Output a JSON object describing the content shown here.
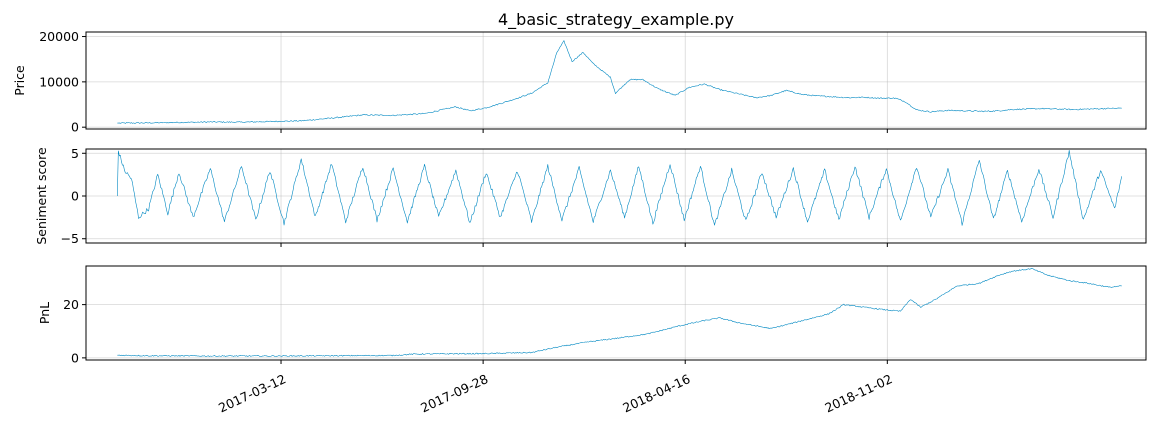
{
  "chart_data": [
    {
      "type": "line",
      "title": "4_basic_strategy_example.py",
      "xlabel": "",
      "ylabel": "Price",
      "xlim": [
        "2016-08-31",
        "2019-07-16"
      ],
      "ylim": [
        -400,
        21000
      ],
      "yticks": [
        0,
        10000,
        20000
      ],
      "ytick_labels": [
        "0",
        "10000",
        "20000"
      ],
      "xticks": [
        "2017-03-12",
        "2017-09-28",
        "2018-04-16",
        "2018-11-02"
      ],
      "xtick_labels": [],
      "grid": true,
      "line_color": "#0088c2",
      "series": [
        {
          "x": [
            "2016-10-01",
            "2016-11-01",
            "2016-12-01",
            "2017-01-01",
            "2017-02-01",
            "2017-03-01",
            "2017-04-01",
            "2017-05-01",
            "2017-06-01",
            "2017-07-01",
            "2017-08-01",
            "2017-09-01",
            "2017-09-15",
            "2017-10-01",
            "2017-10-15",
            "2017-11-01",
            "2017-11-15",
            "2017-12-01",
            "2017-12-10",
            "2017-12-17",
            "2017-12-25",
            "2018-01-05",
            "2018-01-15",
            "2018-02-01",
            "2018-02-06",
            "2018-02-20",
            "2018-03-05",
            "2018-03-20",
            "2018-04-06",
            "2018-04-20",
            "2018-05-05",
            "2018-05-20",
            "2018-06-05",
            "2018-06-25",
            "2018-07-10",
            "2018-07-25",
            "2018-08-10",
            "2018-08-25",
            "2018-09-10",
            "2018-09-25",
            "2018-10-10",
            "2018-10-25",
            "2018-11-10",
            "2018-11-20",
            "2018-12-01",
            "2018-12-15",
            "2019-01-01",
            "2019-01-20",
            "2019-02-05",
            "2019-02-20",
            "2019-03-05",
            "2019-03-20",
            "2019-04-05",
            "2019-04-20",
            "2019-05-05",
            "2019-05-20",
            "2019-06-05",
            "2019-06-22"
          ],
          "values": [
            900,
            950,
            1050,
            1150,
            1100,
            1250,
            1400,
            2000,
            2700,
            2600,
            3000,
            4500,
            3600,
            4300,
            5200,
            6400,
            7500,
            9800,
            16500,
            19000,
            14500,
            16500,
            14000,
            11000,
            7500,
            10500,
            10500,
            8500,
            7000,
            8800,
            9500,
            8300,
            7500,
            6500,
            7000,
            8100,
            7200,
            6900,
            6700,
            6500,
            6600,
            6400,
            6400,
            5600,
            3800,
            3400,
            3700,
            3600,
            3500,
            3600,
            3900,
            4000,
            4100,
            4000,
            3900,
            4000,
            4100,
            4200
          ]
        }
      ]
    },
    {
      "type": "line",
      "title": "",
      "xlabel": "",
      "ylabel": "Seniment score",
      "xlim": [
        "2016-08-31",
        "2019-07-16"
      ],
      "ylim": [
        -5.5,
        5.5
      ],
      "yticks": [
        -5,
        0,
        5
      ],
      "ytick_labels": [
        "−5",
        "0",
        "5"
      ],
      "xticks": [
        "2017-03-12",
        "2017-09-28",
        "2018-04-16",
        "2018-11-02"
      ],
      "xtick_labels": [],
      "grid": true,
      "line_color": "#0088c2",
      "series": [
        {
          "x": [
            "2016-10-01",
            "2016-10-02",
            "2016-10-08",
            "2016-10-15",
            "2016-10-22",
            "2016-11-01",
            "2016-11-10",
            "2016-11-20",
            "2016-12-01",
            "2016-12-15",
            "2017-01-01",
            "2017-01-15",
            "2017-02-01",
            "2017-02-15",
            "2017-03-01",
            "2017-03-15",
            "2017-04-01",
            "2017-04-15",
            "2017-05-01",
            "2017-05-15",
            "2017-06-01",
            "2017-06-15",
            "2017-07-01",
            "2017-07-15",
            "2017-08-01",
            "2017-08-15",
            "2017-09-01",
            "2017-09-15",
            "2017-10-01",
            "2017-10-15",
            "2017-11-01",
            "2017-11-15",
            "2017-12-01",
            "2017-12-15",
            "2018-01-01",
            "2018-01-15",
            "2018-02-01",
            "2018-02-15",
            "2018-03-01",
            "2018-03-15",
            "2018-04-01",
            "2018-04-15",
            "2018-05-01",
            "2018-05-15",
            "2018-06-01",
            "2018-06-15",
            "2018-07-01",
            "2018-07-15",
            "2018-08-01",
            "2018-08-15",
            "2018-09-01",
            "2018-09-15",
            "2018-10-01",
            "2018-10-15",
            "2018-11-01",
            "2018-11-15",
            "2018-12-01",
            "2018-12-15",
            "2019-01-01",
            "2019-01-15",
            "2019-02-01",
            "2019-02-15",
            "2019-03-01",
            "2019-03-15",
            "2019-04-01",
            "2019-04-15",
            "2019-05-01",
            "2019-05-15",
            "2019-06-01",
            "2019-06-15",
            "2019-06-22"
          ],
          "values": [
            0.0,
            5.3,
            3.0,
            2.0,
            -2.5,
            -1.5,
            2.5,
            -2.0,
            2.8,
            -2.5,
            3.2,
            -3.0,
            3.5,
            -2.8,
            3.0,
            -3.2,
            4.3,
            -2.5,
            3.8,
            -3.0,
            3.5,
            -2.8,
            3.2,
            -3.0,
            3.5,
            -2.5,
            3.0,
            -3.2,
            2.8,
            -2.5,
            3.0,
            -3.0,
            3.5,
            -2.8,
            3.2,
            -3.0,
            3.0,
            -2.5,
            3.5,
            -3.2,
            3.8,
            -2.8,
            3.5,
            -3.5,
            3.0,
            -3.0,
            2.8,
            -2.5,
            3.2,
            -3.0,
            3.0,
            -2.8,
            3.5,
            -2.5,
            3.2,
            -3.0,
            3.5,
            -2.5,
            3.0,
            -3.2,
            4.2,
            -2.8,
            3.0,
            -3.0,
            3.2,
            -2.5,
            5.2,
            -2.8,
            3.0,
            -1.5,
            2.3
          ]
        }
      ]
    },
    {
      "type": "line",
      "title": "",
      "xlabel": "",
      "ylabel": "PnL",
      "xlim": [
        "2016-08-31",
        "2019-07-16"
      ],
      "ylim": [
        -0.8,
        34.5
      ],
      "yticks": [
        0,
        20
      ],
      "ytick_labels": [
        "0",
        "20"
      ],
      "xticks": [
        "2017-03-12",
        "2017-09-28",
        "2018-04-16",
        "2018-11-02"
      ],
      "xtick_labels": [
        "2017-03-12",
        "2017-09-28",
        "2018-04-16",
        "2018-11-02"
      ],
      "grid": true,
      "line_color": "#0088c2",
      "series": [
        {
          "x": [
            "2016-10-01",
            "2016-11-01",
            "2017-01-01",
            "2017-03-01",
            "2017-05-01",
            "2017-07-01",
            "2017-07-20",
            "2017-08-15",
            "2017-10-01",
            "2017-11-15",
            "2017-12-10",
            "2018-01-10",
            "2018-02-10",
            "2018-03-10",
            "2018-04-10",
            "2018-05-05",
            "2018-05-20",
            "2018-06-10",
            "2018-07-10",
            "2018-08-10",
            "2018-09-05",
            "2018-09-20",
            "2018-10-10",
            "2018-11-01",
            "2018-11-15",
            "2018-11-25",
            "2018-12-05",
            "2018-12-20",
            "2019-01-10",
            "2019-02-01",
            "2019-02-20",
            "2019-03-05",
            "2019-03-25",
            "2019-04-10",
            "2019-05-01",
            "2019-05-20",
            "2019-06-10",
            "2019-06-22"
          ],
          "values": [
            1.0,
            0.8,
            0.7,
            0.7,
            0.8,
            0.9,
            1.4,
            1.5,
            1.6,
            2.0,
            4.0,
            6.0,
            7.5,
            9.0,
            12.0,
            14.0,
            15.0,
            13.0,
            11.0,
            14.0,
            16.5,
            20.0,
            19.0,
            18.0,
            17.5,
            22.0,
            19.0,
            22.0,
            27.0,
            28.0,
            31.0,
            32.5,
            33.5,
            31.0,
            29.0,
            28.0,
            26.5,
            27.0
          ]
        }
      ]
    }
  ]
}
